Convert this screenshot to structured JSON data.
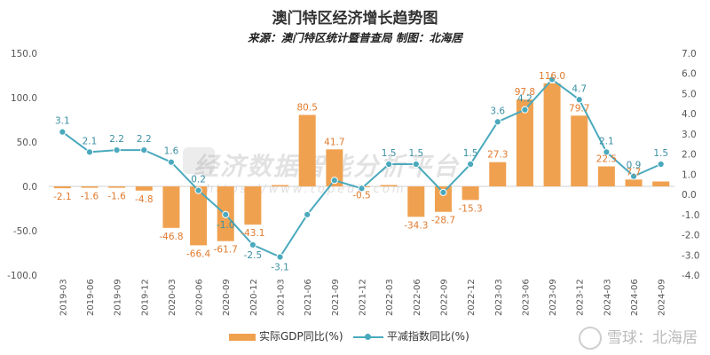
{
  "colors": {
    "bar": "#f0a150",
    "line": "#4aa9bd",
    "axis_text": "#555555",
    "bar_label": "#e07a2e",
    "line_label": "#3a8fa3"
  },
  "footer_watermark": "雪球：北海居",
  "watermark": {
    "text": "经济数据智能分析平台",
    "url": "https://www.topedb.com"
  },
  "chart_data": {
    "type": "bar",
    "title": "澳门特区经济增长趋势图",
    "subtitle": "来源：澳门特区统计暨普查局 制图：北海居",
    "categories": [
      "2019-03",
      "2019-06",
      "2019-09",
      "2019-12",
      "2020-03",
      "2020-06",
      "2020-09",
      "2020-12",
      "2021-03",
      "2021-06",
      "2021-09",
      "2021-12",
      "2022-03",
      "2022-06",
      "2022-09",
      "2022-12",
      "2023-03",
      "2023-06",
      "2023-09",
      "2023-12",
      "2024-03",
      "2024-06",
      "2024-09"
    ],
    "series": [
      {
        "name": "实际GDP同比(%)",
        "type": "bar",
        "axis": "left",
        "values": [
          -2.1,
          -1.6,
          -1.6,
          -4.8,
          -46.8,
          -66.4,
          -61.7,
          -43.1,
          1.5,
          80.5,
          41.7,
          -0.5,
          1.5,
          -34.3,
          -28.7,
          -15.3,
          27.3,
          97.8,
          116.0,
          79.7,
          22.5,
          7.7,
          5.5
        ],
        "labels": [
          "-2.1",
          "-1.6",
          "-1.6",
          "-4.8",
          "-46.8",
          "-66.4",
          "-61.7",
          "-43.1",
          "",
          "80.5",
          "41.7",
          "-0.5",
          "",
          "-34.3",
          "-28.7",
          "-15.3",
          "27.3",
          "97.8",
          "116.0",
          "79.7",
          "22.5",
          "7.7",
          ""
        ]
      },
      {
        "name": "平减指数同比(%)",
        "type": "line",
        "axis": "right",
        "values": [
          3.1,
          2.1,
          2.2,
          2.2,
          1.6,
          0.2,
          -1.0,
          -2.5,
          -3.1,
          -1.0,
          0.7,
          0.3,
          1.5,
          1.5,
          0.1,
          1.5,
          3.6,
          4.2,
          5.7,
          4.7,
          2.1,
          0.9,
          1.5
        ],
        "labels": [
          "3.1",
          "2.1",
          "2.2",
          "2.2",
          "1.6",
          "0.2",
          "-1.0",
          "-2.5",
          "-3.1",
          "",
          "",
          "",
          "1.5",
          "1.5",
          "",
          "1.5",
          "3.6",
          "4.2",
          "",
          "4.7",
          "2.1",
          "0.9",
          "1.5"
        ]
      }
    ],
    "y_left": {
      "min": -100,
      "max": 150,
      "ticks": [
        -100,
        -50,
        0,
        50,
        100,
        150
      ],
      "tick_labels": [
        "-100.0",
        "-50.0",
        "0.0",
        "50.0",
        "100.0",
        "150.0"
      ]
    },
    "y_right": {
      "min": -4,
      "max": 7,
      "ticks": [
        -4,
        -3,
        -2,
        -1,
        0,
        1,
        2,
        3,
        4,
        5,
        6,
        7
      ],
      "tick_labels": [
        "-4.0",
        "-3.0",
        "-2.0",
        "-1.0",
        "0.0",
        "1.0",
        "2.0",
        "3.0",
        "4.0",
        "5.0",
        "6.0",
        "7.0"
      ]
    },
    "grid": false,
    "legend_position": "bottom"
  }
}
